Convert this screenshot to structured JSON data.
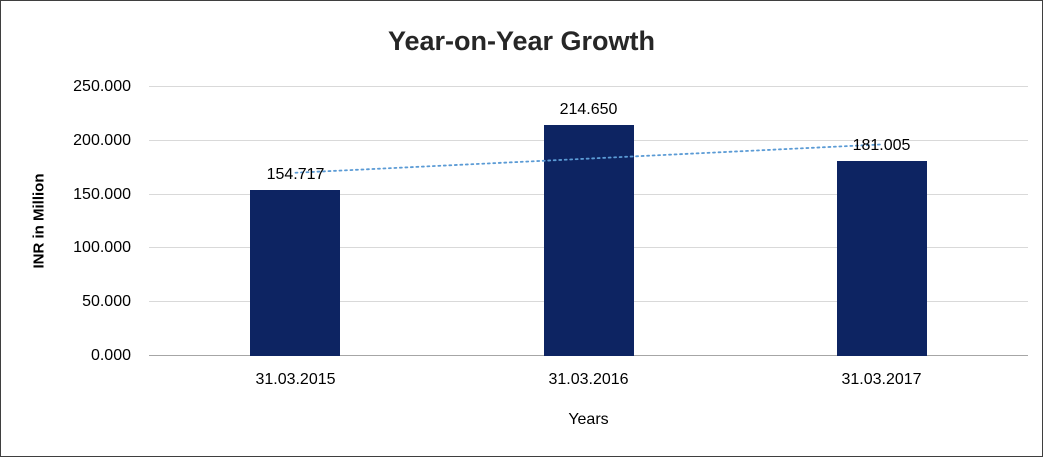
{
  "chart_data": {
    "type": "bar",
    "title": "Year-on-Year Growth",
    "categories": [
      "31.03.2015",
      "31.03.2016",
      "31.03.2017"
    ],
    "values": [
      154717,
      214650,
      181005
    ],
    "data_labels": [
      "154.717",
      "214.650",
      "181.005"
    ],
    "xlabel": "Years",
    "ylabel": "INR in Million",
    "ylim": [
      0,
      250000
    ],
    "yticks": [
      0,
      50000,
      100000,
      150000,
      200000,
      250000
    ],
    "ytick_labels": [
      "0.000",
      "50.000",
      "100.000",
      "150.000",
      "200.000",
      "250.000"
    ],
    "grid": true,
    "legend": false,
    "bar_color": "#0d2462",
    "gridline_color": "#d9d9d9",
    "trendline": {
      "type": "linear",
      "style": "dotted",
      "color": "#5b9bd5"
    }
  }
}
